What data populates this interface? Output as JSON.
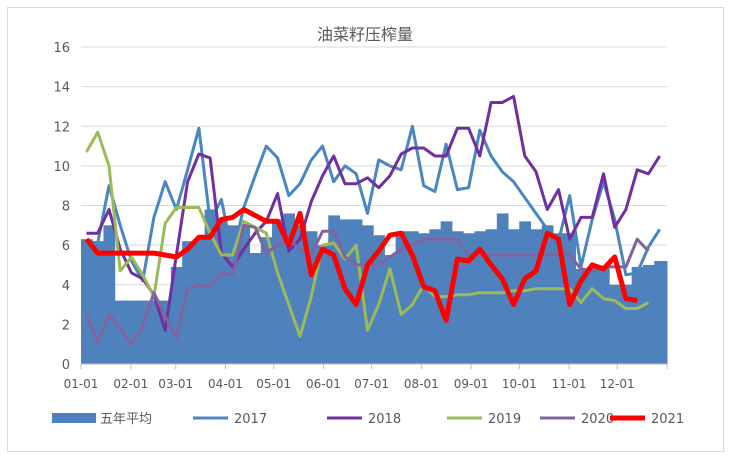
{
  "chart_data": {
    "type": "line",
    "title": "油菜籽压榨量",
    "xlabel": "",
    "ylabel": "",
    "ylim": [
      0,
      16
    ],
    "yticks": [
      "0",
      "2",
      "4",
      "6",
      "8",
      "10",
      "12",
      "14",
      "16"
    ],
    "xticks": [
      "01-01",
      "02-01",
      "03-01",
      "04-01",
      "05-01",
      "06-01",
      "07-01",
      "08-01",
      "09-01",
      "10-01",
      "11-01",
      "12-01"
    ],
    "grid": true,
    "legend": "bottom",
    "x": [
      "01-01",
      "01-08",
      "01-15",
      "01-22",
      "01-29",
      "02-05",
      "02-12",
      "02-19",
      "02-26",
      "03-05",
      "03-12",
      "03-19",
      "03-26",
      "04-02",
      "04-09",
      "04-16",
      "04-23",
      "04-30",
      "05-07",
      "05-14",
      "05-21",
      "05-28",
      "06-04",
      "06-11",
      "06-18",
      "06-25",
      "07-02",
      "07-09",
      "07-16",
      "07-23",
      "07-30",
      "08-06",
      "08-13",
      "08-20",
      "08-27",
      "09-03",
      "09-10",
      "09-17",
      "09-24",
      "10-01",
      "10-08",
      "10-15",
      "10-22",
      "10-29",
      "11-05",
      "11-12",
      "11-19",
      "11-26",
      "12-03",
      "12-10",
      "12-17",
      "12-24"
    ],
    "series": [
      {
        "name": "五年平均",
        "kind": "area",
        "color": "#4f81bd",
        "values": [
          6.3,
          6.2,
          7.0,
          3.2,
          3.2,
          3.2,
          3.2,
          3.2,
          4.9,
          6.2,
          6.3,
          7.8,
          7.3,
          7.0,
          7.0,
          5.6,
          6.4,
          7.3,
          7.6,
          7.0,
          6.7,
          6.0,
          7.5,
          7.3,
          7.3,
          7.0,
          6.5,
          5.5,
          6.7,
          6.7,
          6.6,
          6.8,
          7.2,
          6.7,
          6.6,
          6.7,
          6.8,
          7.6,
          6.8,
          7.2,
          6.8,
          7.0,
          6.6,
          6.6,
          4.8,
          4.9,
          4.9,
          4.0,
          4.0,
          4.9,
          5.0,
          5.2
        ]
      },
      {
        "name": "2017",
        "kind": "line",
        "color": "#4a86c0",
        "values": [
          6.2,
          6.1,
          9.0,
          7.0,
          5.2,
          4.2,
          7.4,
          9.2,
          7.8,
          9.8,
          11.9,
          7.2,
          8.3,
          5.5,
          7.9,
          9.5,
          11.0,
          10.4,
          8.5,
          9.1,
          10.3,
          11.0,
          9.2,
          10.0,
          9.6,
          7.6,
          10.3,
          10.0,
          9.8,
          12.0,
          9.0,
          8.7,
          11.1,
          8.8,
          8.9,
          11.8,
          10.5,
          9.7,
          9.2,
          8.4,
          7.6,
          6.8,
          6.2,
          8.5,
          4.9,
          7.3,
          9.2,
          7.3,
          4.5,
          4.6,
          5.9,
          6.8
        ]
      },
      {
        "name": "2018",
        "kind": "line",
        "color": "#7030a0",
        "values": [
          6.6,
          6.6,
          7.8,
          5.8,
          4.6,
          4.3,
          3.5,
          1.7,
          5.5,
          9.2,
          10.6,
          10.4,
          5.6,
          4.9,
          5.8,
          6.6,
          7.2,
          8.6,
          5.7,
          6.3,
          8.2,
          9.5,
          10.5,
          9.1,
          9.1,
          9.4,
          8.9,
          9.5,
          10.6,
          10.9,
          10.9,
          10.5,
          10.5,
          11.9,
          11.9,
          10.5,
          13.2,
          13.2,
          13.5,
          10.5,
          9.7,
          7.8,
          8.8,
          6.3,
          7.4,
          7.4,
          9.6,
          6.9,
          7.8,
          9.8,
          9.6,
          10.5
        ]
      },
      {
        "name": "2019",
        "kind": "line",
        "color": "#9bbb59",
        "values": [
          10.7,
          11.7,
          10.0,
          4.7,
          5.4,
          4.5,
          3.4,
          7.1,
          7.9,
          7.9,
          7.9,
          6.6,
          5.5,
          5.5,
          7.2,
          6.9,
          6.6,
          4.6,
          3.0,
          1.4,
          3.4,
          6.0,
          6.1,
          5.3,
          6.0,
          1.7,
          3.0,
          4.8,
          2.5,
          3.0,
          4.0,
          3.4,
          3.4,
          3.5,
          3.5,
          3.6,
          3.6,
          3.6,
          3.7,
          3.7,
          3.8,
          3.8,
          3.8,
          3.8,
          3.1,
          3.8,
          3.3,
          3.2,
          2.8,
          2.8,
          3.1,
          null
        ]
      },
      {
        "name": "2020",
        "kind": "line",
        "color": "#8064a2",
        "values": [
          2.5,
          1.1,
          2.5,
          1.8,
          1.0,
          1.9,
          3.6,
          2.4,
          1.3,
          3.8,
          4.0,
          3.9,
          4.6,
          4.5,
          7.0,
          6.9,
          5.6,
          6.0,
          6.3,
          5.8,
          5.5,
          6.7,
          6.7,
          5.4,
          5.0,
          5.0,
          5.0,
          5.4,
          5.8,
          6.0,
          6.3,
          6.3,
          6.3,
          6.3,
          5.5,
          5.5,
          5.5,
          5.5,
          5.5,
          5.5,
          5.5,
          5.5,
          5.5,
          5.5,
          4.8,
          4.7,
          4.9,
          4.9,
          4.9,
          6.3,
          5.7,
          null
        ]
      },
      {
        "name": "2021",
        "kind": "line",
        "color": "#ff0000",
        "values": [
          6.3,
          5.6,
          5.6,
          5.6,
          5.6,
          5.6,
          5.6,
          5.5,
          5.4,
          5.8,
          6.4,
          6.4,
          7.3,
          7.4,
          7.8,
          7.5,
          7.2,
          7.2,
          6.0,
          7.6,
          4.5,
          5.8,
          5.5,
          3.8,
          3.0,
          5.0,
          5.7,
          6.5,
          6.6,
          5.5,
          3.9,
          3.7,
          2.2,
          5.3,
          5.2,
          5.8,
          5.0,
          4.3,
          3.0,
          4.3,
          4.7,
          6.6,
          6.3,
          3.0,
          4.2,
          5.0,
          4.8,
          5.4,
          3.3,
          3.2,
          null,
          null
        ]
      }
    ]
  }
}
